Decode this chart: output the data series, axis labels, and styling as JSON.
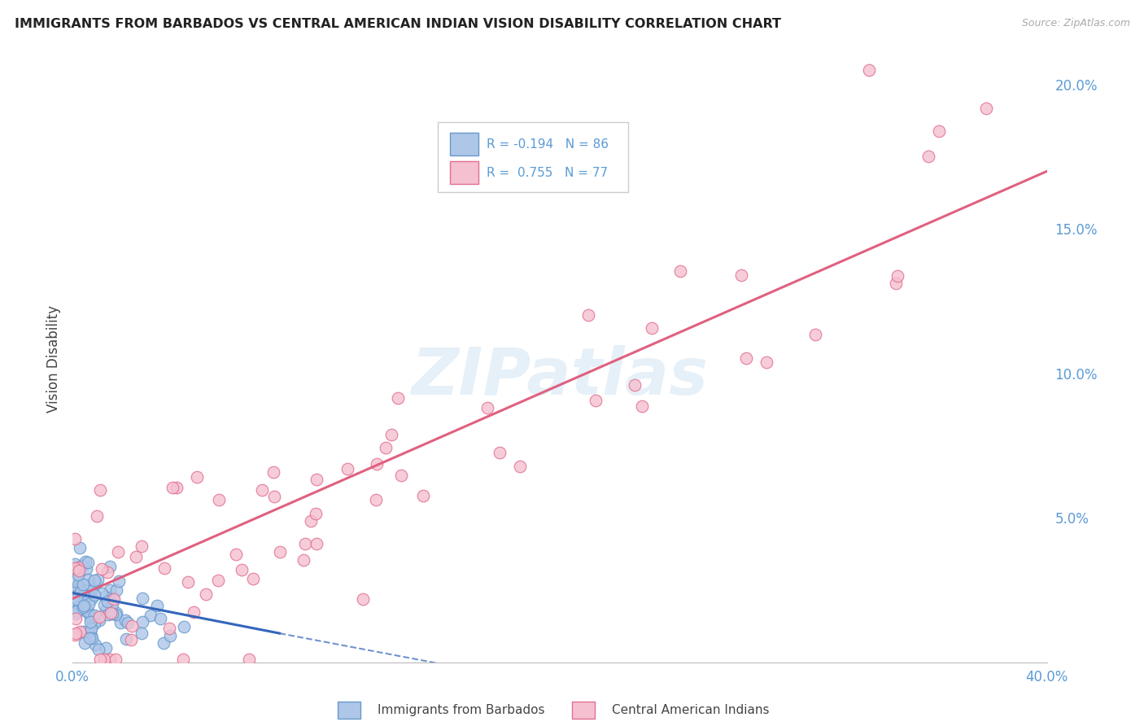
{
  "title": "IMMIGRANTS FROM BARBADOS VS CENTRAL AMERICAN INDIAN VISION DISABILITY CORRELATION CHART",
  "source": "Source: ZipAtlas.com",
  "ylabel": "Vision Disability",
  "xlim": [
    0.0,
    0.4
  ],
  "ylim": [
    0.0,
    0.21
  ],
  "barbados_color": "#aec6e8",
  "barbados_edge": "#6699cc",
  "indian_color": "#f5c0d0",
  "indian_edge": "#e07090",
  "barbados_R": -0.194,
  "barbados_N": 86,
  "indian_R": 0.755,
  "indian_N": 77,
  "barbados_line_color": "#3366bb",
  "indian_line_color": "#e06080",
  "watermark": "ZIPatlas",
  "legend_label_barbados": "Immigrants from Barbados",
  "legend_label_indian": "Central American Indians",
  "grid_color": "#cccccc",
  "background_color": "#ffffff",
  "title_color": "#222222",
  "axis_label_color": "#444444",
  "tick_label_color": "#5b9bd5",
  "R_label_color": "#5b9bd5",
  "indian_line_x0": 0.0,
  "indian_line_y0": 0.022,
  "indian_line_x1": 0.4,
  "indian_line_y1": 0.17,
  "barbados_line_solid_x0": 0.0,
  "barbados_line_solid_y0": 0.024,
  "barbados_line_solid_x1": 0.085,
  "barbados_line_solid_y1": 0.01,
  "barbados_line_dash_x0": 0.085,
  "barbados_line_dash_y0": 0.01,
  "barbados_line_dash_x1": 0.16,
  "barbados_line_dash_y1": -0.002
}
